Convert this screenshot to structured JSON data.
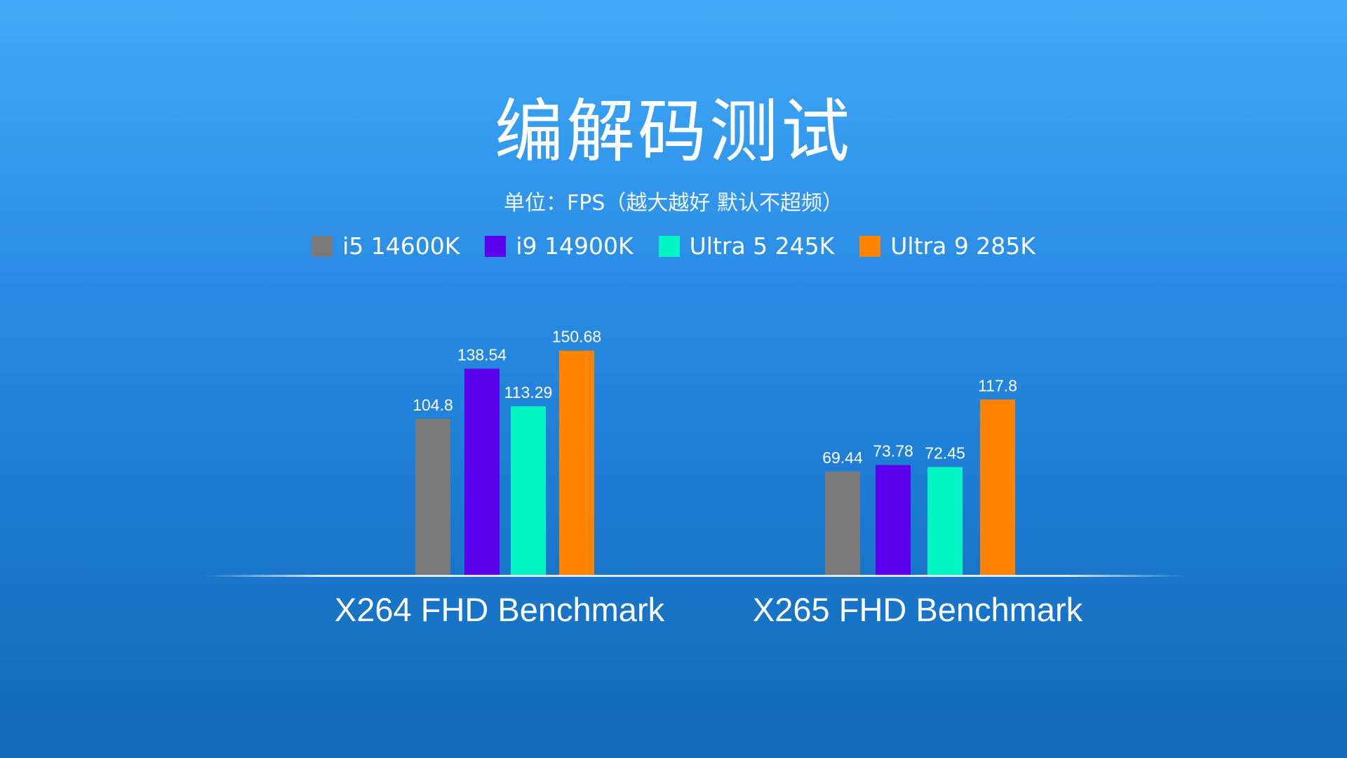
{
  "title": "编解码测试",
  "subtitle": "单位：FPS（越大越好 默认不超频）",
  "chart_data": {
    "type": "bar",
    "title": "编解码测试",
    "subtitle": "单位：FPS（越大越好 默认不超频）",
    "categories": [
      "X264 FHD Benchmark",
      "X265 FHD Benchmark"
    ],
    "series": [
      {
        "name": "i5 14600K",
        "color": "#7a7a7a",
        "values": [
          104.8,
          69.44
        ]
      },
      {
        "name": "i9 14900K",
        "color": "#5a00ee",
        "values": [
          138.54,
          73.78
        ]
      },
      {
        "name": "Ultra 5 245K",
        "color": "#00f5c3",
        "values": [
          113.29,
          72.45
        ]
      },
      {
        "name": "Ultra 9 285K",
        "color": "#ff8200",
        "values": [
          150.68,
          117.8
        ]
      }
    ],
    "ylim": [
      0,
      160
    ],
    "legend": "top-center",
    "grid": false
  }
}
